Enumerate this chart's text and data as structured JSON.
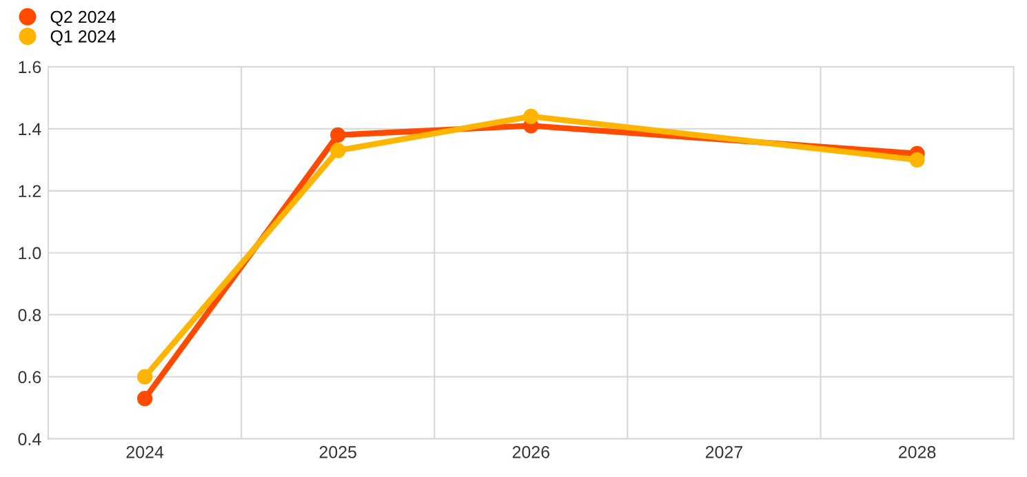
{
  "chart_data": {
    "type": "line",
    "series": [
      {
        "name": "Q2 2024",
        "color": "#ff4b00",
        "x": [
          2024,
          2025,
          2026,
          2028
        ],
        "values": [
          0.53,
          1.38,
          1.41,
          1.32
        ]
      },
      {
        "name": "Q1 2024",
        "color": "#ffb400",
        "x": [
          2024,
          2025,
          2026,
          2028
        ],
        "values": [
          0.6,
          1.33,
          1.44,
          1.3
        ]
      }
    ],
    "xlim": [
      2023.5,
      2028.5
    ],
    "xticks": [
      2024,
      {
        "value": 2024.5,
        "label": null
      },
      2025,
      {
        "value": 2025.5,
        "label": null
      },
      2026,
      {
        "value": 2026.5,
        "label": null
      },
      2027,
      {
        "value": 2027.5,
        "label": null
      },
      2028
    ],
    "ylim": [
      0.4,
      1.6
    ],
    "yticks": [
      {
        "value": 0.4,
        "label": "0.4"
      },
      {
        "value": 0.6,
        "label": "0.6"
      },
      {
        "value": 0.8,
        "label": "0.8"
      },
      {
        "value": 1.0,
        "label": "1.0"
      },
      {
        "value": 1.2,
        "label": "1.2"
      },
      {
        "value": 1.4,
        "label": "1.4"
      },
      {
        "value": 1.6,
        "label": "1.6"
      }
    ],
    "grid": true,
    "legend": "top left",
    "marker": "circle",
    "line_style": "solid"
  }
}
